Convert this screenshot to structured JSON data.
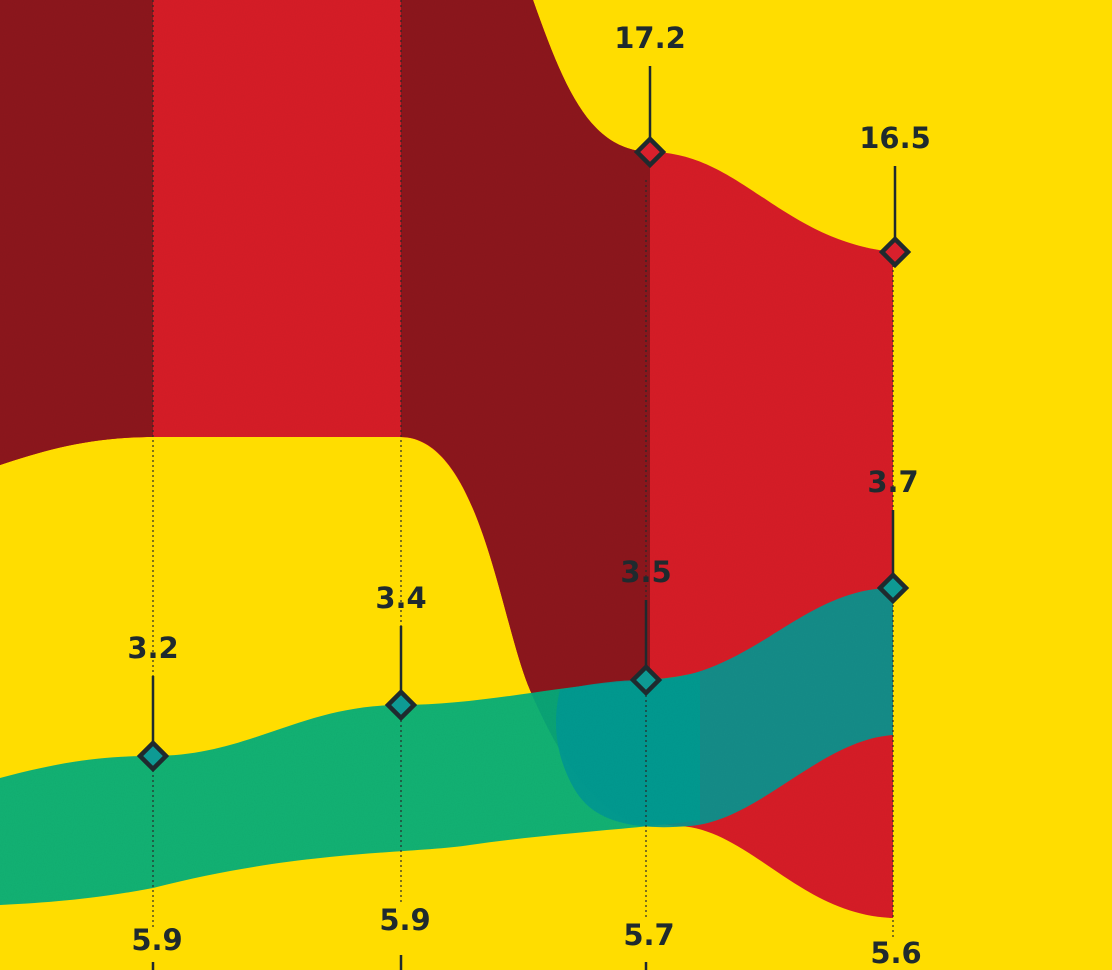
{
  "chart_data": {
    "type": "area",
    "colors": {
      "background": "#FFDD00",
      "red": "#D8202C",
      "dark_red": "#8E1C22",
      "green": "#0FAF7E",
      "teal": "#0E9A94",
      "marker_ink": "#1f2a2e"
    },
    "series": [
      {
        "color": "red",
        "points": [
          {
            "value": "17.2",
            "value_num": 17.2
          },
          {
            "value": "16.5",
            "value_num": 16.5
          }
        ]
      },
      {
        "color": "green",
        "points": [
          {
            "value": "3.2",
            "value_num": 3.2
          },
          {
            "value": "3.4",
            "value_num": 3.4
          }
        ]
      },
      {
        "color": "teal",
        "points": [
          {
            "value": "3.5",
            "value_num": 3.5
          },
          {
            "value": "3.7",
            "value_num": 3.7
          }
        ]
      },
      {
        "color": "baseline",
        "points": [
          {
            "value": "5.9",
            "value_num": 5.9
          },
          {
            "value": "5.9",
            "value_num": 5.9
          },
          {
            "value": "5.7",
            "value_num": 5.7
          },
          {
            "value": "5.6",
            "value_num": 5.6
          }
        ]
      }
    ]
  }
}
